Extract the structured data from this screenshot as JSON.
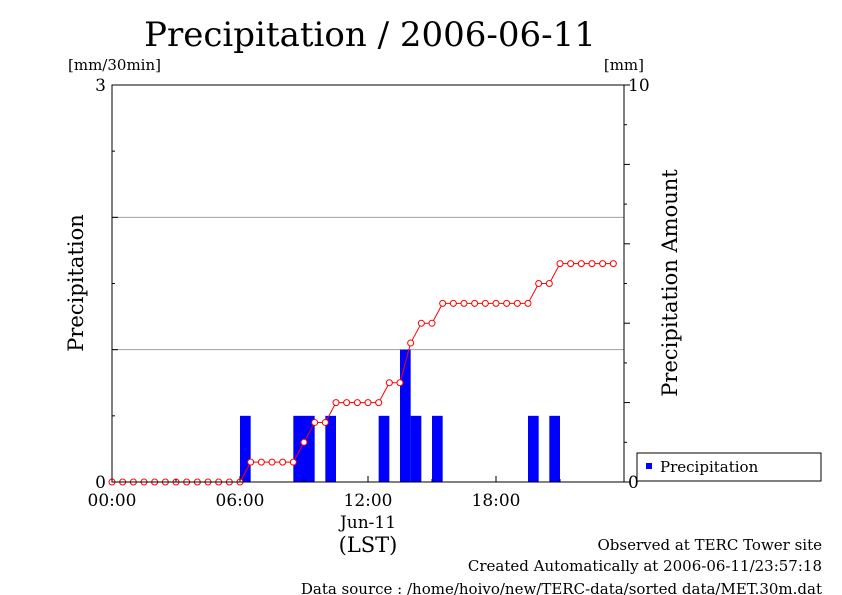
{
  "chart_data": {
    "type": "bar",
    "title": "Precipitation / 2006-06-11",
    "xlabel_date": "Jun-11",
    "xlabel_tz": "(LST)",
    "ylabel_left": "Precipitation",
    "ylabel_right": "Precipitation Amount",
    "unit_left": "[mm/30min]",
    "unit_right": "[mm]",
    "x_ticks": [
      "00:00",
      "06:00",
      "12:00",
      "18:00"
    ],
    "x_tick_hours": [
      0,
      6,
      12,
      18
    ],
    "y_left_ticks": [
      "0",
      "3"
    ],
    "y_right_ticks": [
      "0",
      "10"
    ],
    "ylim_left": [
      0,
      3
    ],
    "ylim_right": [
      0,
      10
    ],
    "x_range_hours": [
      0,
      24
    ],
    "grid": "horizontal",
    "legend_placement": "bottom-right",
    "bar_color": "#0000ff",
    "line_color": "#ff0000",
    "series": [
      {
        "name": "Precipitation",
        "kind": "bar",
        "axis": "left",
        "bar_start_hours": [
          6.0,
          8.5,
          9.0,
          10.0,
          12.5,
          13.5,
          14.0,
          15.0,
          19.5,
          20.5
        ],
        "values": [
          0.5,
          0.5,
          0.5,
          0.5,
          0.5,
          1.0,
          0.5,
          0.5,
          0.5,
          0.5
        ]
      },
      {
        "kind": "line",
        "axis": "right",
        "x_hours": [
          0,
          0.5,
          1,
          1.5,
          2,
          2.5,
          3,
          3.5,
          4,
          4.5,
          5,
          5.5,
          6,
          6.5,
          7,
          7.5,
          8,
          8.5,
          9,
          9.5,
          10,
          10.5,
          11,
          11.5,
          12,
          12.5,
          13,
          13.5,
          14,
          14.5,
          15,
          15.5,
          16,
          16.5,
          17,
          17.5,
          18,
          18.5,
          19,
          19.5,
          20,
          20.5,
          21,
          21.5,
          22,
          22.5,
          23,
          23.5
        ],
        "values": [
          0,
          0,
          0,
          0,
          0,
          0,
          0,
          0,
          0,
          0,
          0,
          0,
          0,
          0.5,
          0.5,
          0.5,
          0.5,
          0.5,
          1.0,
          1.5,
          1.5,
          2.0,
          2.0,
          2.0,
          2.0,
          2.0,
          2.5,
          2.5,
          3.5,
          4.0,
          4.0,
          4.5,
          4.5,
          4.5,
          4.5,
          4.5,
          4.5,
          4.5,
          4.5,
          4.5,
          5.0,
          5.0,
          5.5,
          5.5,
          5.5,
          5.5,
          5.5,
          5.5
        ]
      }
    ]
  },
  "legend": {
    "label": "Precipitation"
  },
  "footer": {
    "line1": "Observed at TERC Tower site",
    "line2": "Created Automatically at 2006-06-11/23:57:18",
    "line3": "Data source : /home/hoivo/new/TERC-data/sorted  data/MET.30m.dat"
  }
}
